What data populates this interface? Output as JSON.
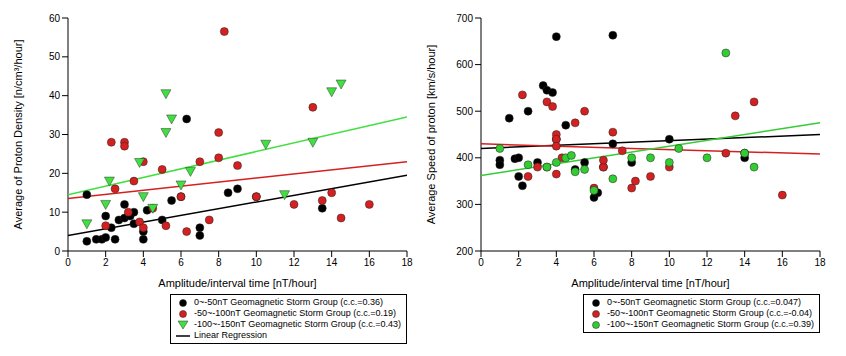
{
  "chart_data": [
    {
      "type": "scatter",
      "x_label": "Amplitude/interval time [nT/hour]",
      "y_label": "Average of Proton Density [n/cm³/hour]",
      "xlim": [
        0,
        18
      ],
      "xticks": [
        0,
        2,
        4,
        6,
        8,
        10,
        12,
        14,
        16,
        18
      ],
      "ylim": [
        0,
        60
      ],
      "yticks": [
        0,
        10,
        20,
        30,
        40,
        50,
        60
      ],
      "regression_label": "Linear Regression",
      "series": [
        {
          "name": "0~-50nT Geomagnetic Storm Group (c.c.=0.36)",
          "color": "#000000",
          "marker": "circle",
          "x": [
            1,
            1,
            1.5,
            1.8,
            2,
            2,
            2.3,
            2.5,
            2.7,
            3,
            3,
            3.3,
            3.5,
            3.5,
            4,
            4,
            4.2,
            5,
            5.5,
            6,
            6.3,
            7,
            7,
            8.5,
            9,
            10,
            13.5
          ],
          "values": [
            2.5,
            14.5,
            3,
            3,
            9,
            3.5,
            6,
            3,
            8,
            8.5,
            12,
            9,
            10,
            7,
            5,
            3,
            10.5,
            8,
            13,
            14,
            34,
            6,
            4,
            15,
            16,
            14,
            11
          ],
          "regression": {
            "x": [
              0,
              18
            ],
            "values": [
              4,
              19.5
            ]
          }
        },
        {
          "name": "-50~-100nT Geomagnetic Storm Group (c.c.=0.19)",
          "color": "#d42020",
          "marker": "circle",
          "x": [
            2,
            2.3,
            2.5,
            3,
            3,
            3.2,
            3.5,
            3.8,
            4,
            4,
            4.5,
            5,
            5.2,
            6,
            6.3,
            7,
            7.5,
            8,
            8,
            8.3,
            9,
            10,
            12,
            13,
            13.5,
            14,
            14.5,
            16
          ],
          "values": [
            6.5,
            28,
            16,
            28,
            27,
            10,
            18,
            7.5,
            23,
            6,
            11,
            21,
            6.5,
            14,
            5,
            23,
            8,
            30.5,
            24,
            56.5,
            22,
            14,
            12,
            37,
            13,
            15,
            8.5,
            12
          ],
          "regression": {
            "x": [
              0,
              18
            ],
            "values": [
              13.5,
              23
            ]
          }
        },
        {
          "name": "-100~-150nT Geomagnetic Storm Group (c.c.=0.43)",
          "color": "#3fe03f",
          "marker": "triangle-down",
          "x": [
            1,
            2,
            2.2,
            3.8,
            4,
            4.5,
            5.2,
            5.2,
            5.5,
            6,
            6.5,
            10.5,
            11.5,
            13,
            14,
            14.5
          ],
          "values": [
            7,
            12,
            18,
            22.8,
            14,
            11,
            40.5,
            30.5,
            34,
            17,
            20.5,
            27.5,
            14.5,
            28,
            41,
            43
          ],
          "regression": {
            "x": [
              0,
              18
            ],
            "values": [
              14.5,
              34.5
            ]
          }
        }
      ]
    },
    {
      "type": "scatter",
      "x_label": "Amplitude/interval time [nT/hour]",
      "y_label": "Average Speed of proton [km/s/hour]",
      "xlim": [
        0,
        18
      ],
      "xticks": [
        0,
        2,
        4,
        6,
        8,
        10,
        12,
        14,
        16,
        18
      ],
      "ylim": [
        200,
        700
      ],
      "yticks": [
        200,
        300,
        400,
        500,
        600,
        700
      ],
      "series": [
        {
          "name": "0~-50nT Geomagnetic Storm Group (c.c.=0.047)",
          "color": "#000000",
          "marker": "circle",
          "x": [
            1,
            1,
            1.5,
            1.8,
            2,
            2,
            2.2,
            2.5,
            3,
            3.3,
            3.5,
            3.8,
            4,
            4,
            4.5,
            5,
            5.5,
            6,
            6.2,
            6.5,
            7,
            7,
            8,
            10,
            14,
            14
          ],
          "values": [
            395,
            385,
            485,
            398,
            360,
            400,
            340,
            500,
            390,
            555,
            545,
            540,
            660,
            440,
            470,
            375,
            390,
            315,
            325,
            380,
            663,
            430,
            390,
            440,
            410,
            400
          ],
          "regression": {
            "x": [
              0,
              18
            ],
            "values": [
              420,
              450
            ]
          }
        },
        {
          "name": "-50~-100nT Geomagnetic Storm Group (c.c.=-0.04)",
          "color": "#d42020",
          "marker": "circle",
          "x": [
            2.2,
            2.5,
            3,
            3.5,
            3.5,
            3.8,
            4,
            4,
            4,
            4,
            4.3,
            5,
            5.5,
            6,
            6.5,
            6.5,
            7,
            7.5,
            8,
            8.2,
            9,
            10,
            13,
            13.5,
            14.5,
            16
          ],
          "values": [
            535,
            360,
            380,
            520,
            380,
            510,
            450,
            365,
            440,
            425,
            400,
            475,
            500,
            335,
            380,
            395,
            455,
            415,
            335,
            350,
            360,
            380,
            410,
            490,
            520,
            320
          ],
          "regression": {
            "x": [
              0,
              18
            ],
            "values": [
              430,
              408
            ]
          }
        },
        {
          "name": "-100~-150nT Geomagnetic Storm Group (c.c.=0.39)",
          "color": "#33cc33",
          "marker": "circle",
          "x": [
            1,
            2.5,
            3.5,
            4,
            4.5,
            4.8,
            5,
            5.5,
            6,
            7,
            8,
            9,
            10,
            10.5,
            12,
            13,
            14,
            14.5
          ],
          "values": [
            420,
            385,
            380,
            390,
            400,
            405,
            370,
            375,
            330,
            355,
            400,
            400,
            390,
            420,
            400,
            625,
            410,
            380
          ],
          "regression": {
            "x": [
              0,
              18
            ],
            "values": [
              362,
              475
            ]
          }
        }
      ]
    }
  ]
}
